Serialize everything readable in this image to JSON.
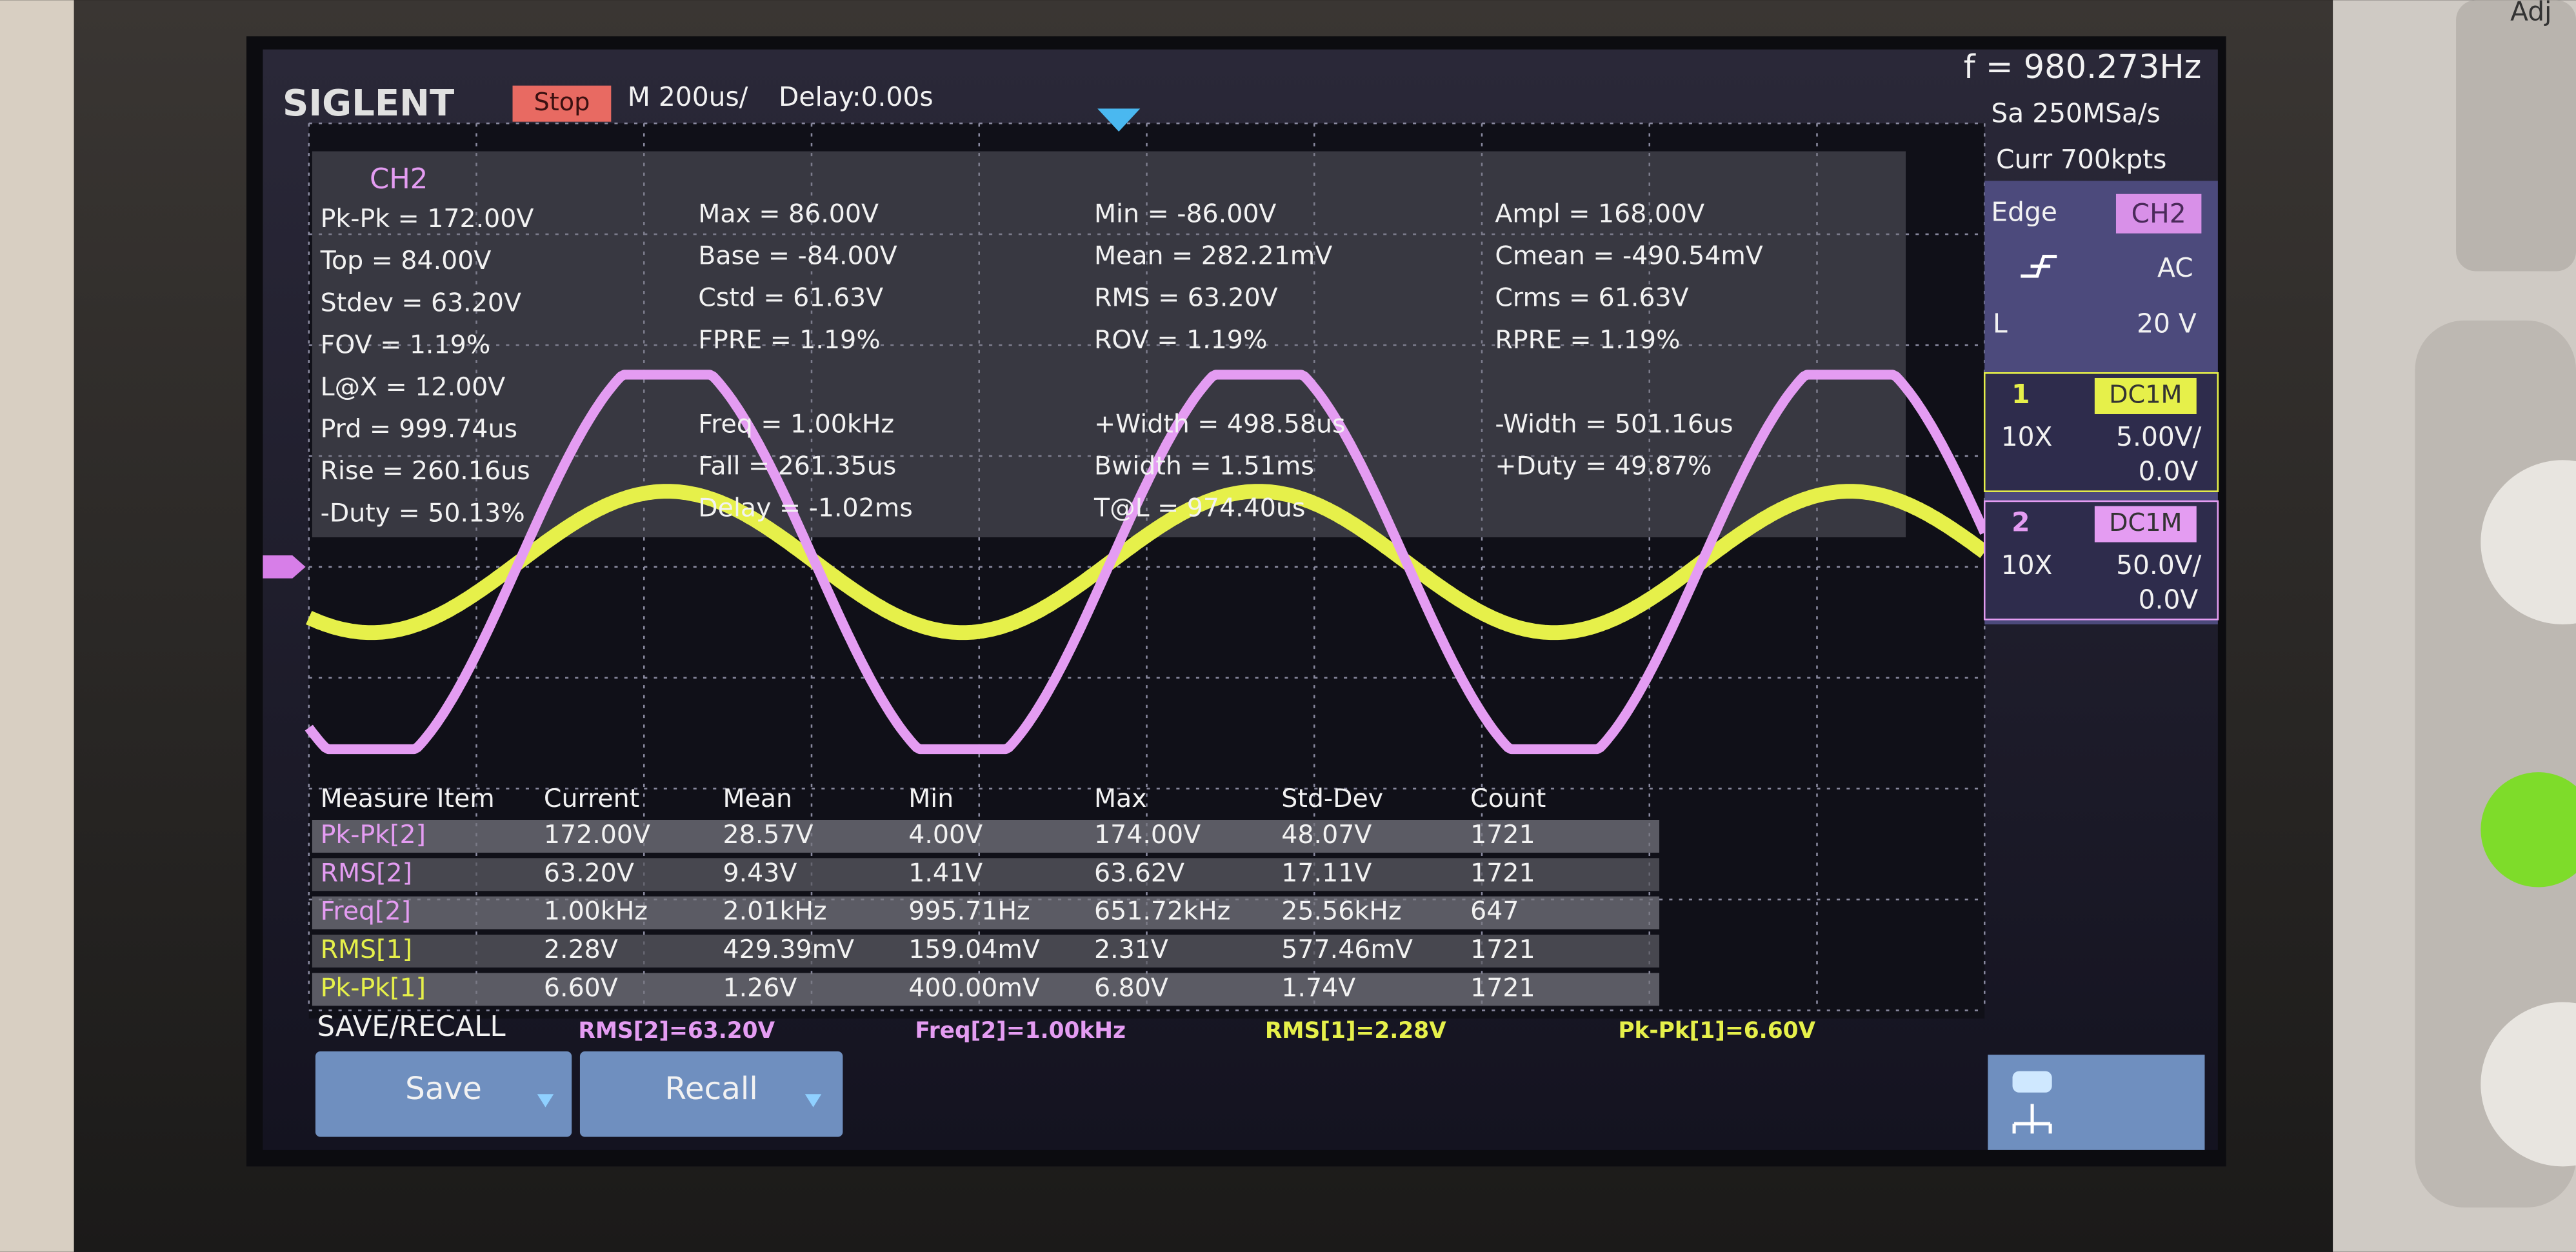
{
  "header": {
    "brand": "SIGLENT",
    "status": "Stop",
    "timebase": "M 200us/",
    "delay": "Delay:0.00s",
    "frequency": "f = 980.273Hz"
  },
  "acquisition": {
    "sample_rate": "Sa 250MSa/s",
    "memory": "Curr 700kpts"
  },
  "trigger": {
    "type": "Edge",
    "source": "CH2",
    "coupling": "AC",
    "level_label": "L",
    "level": "20 V"
  },
  "channels": [
    {
      "number": "1",
      "coupling": "DC1M",
      "probe": "10X",
      "scale": "5.00V/",
      "offset": "0.0V",
      "color": "#e6f04a"
    },
    {
      "number": "2",
      "coupling": "DC1M",
      "probe": "10X",
      "scale": "50.0V/",
      "offset": "0.0V",
      "color": "#e49cf2"
    }
  ],
  "measurements": {
    "channel": "CH2",
    "columns": [
      [
        "Pk-Pk = 172.00V",
        "Top = 84.00V",
        "Stdev = 63.20V",
        "FOV = 1.19%",
        "L@X = 12.00V",
        "Prd = 999.74us",
        "Rise = 260.16us",
        "-Duty = 50.13%"
      ],
      [
        "Max = 86.00V",
        "Base = -84.00V",
        "Cstd = 61.63V",
        "FPRE = 1.19%",
        null,
        "Freq = 1.00kHz",
        "Fall = 261.35us",
        "Delay = -1.02ms"
      ],
      [
        "Min = -86.00V",
        "Mean = 282.21mV",
        "RMS = 63.20V",
        "ROV = 1.19%",
        null,
        "+Width = 498.58us",
        "Bwidth = 1.51ms",
        "T@L = 974.40us"
      ],
      [
        "Ampl = 168.00V",
        "Cmean = -490.54mV",
        "Crms = 61.63V",
        "RPRE = 1.19%",
        null,
        "-Width = 501.16us",
        "+Duty = 49.87%"
      ]
    ]
  },
  "statistics": {
    "header": [
      "Measure Item",
      "Current",
      "Mean",
      "Min",
      "Max",
      "Std-Dev",
      "Count"
    ],
    "rows": [
      {
        "color": "#e49cf2",
        "cells": [
          "Pk-Pk[2]",
          "172.00V",
          "28.57V",
          "4.00V",
          "174.00V",
          "48.07V",
          "1721"
        ]
      },
      {
        "color": "#e49cf2",
        "cells": [
          "RMS[2]",
          "63.20V",
          "9.43V",
          "1.41V",
          "63.62V",
          "17.11V",
          "1721"
        ]
      },
      {
        "color": "#e49cf2",
        "cells": [
          "Freq[2]",
          "1.00kHz",
          "2.01kHz",
          "995.71Hz",
          "651.72kHz",
          "25.56kHz",
          "647"
        ]
      },
      {
        "color": "#e6f04a",
        "cells": [
          "RMS[1]",
          "2.28V",
          "429.39mV",
          "159.04mV",
          "2.31V",
          "577.46mV",
          "1721"
        ]
      },
      {
        "color": "#e6f04a",
        "cells": [
          "Pk-Pk[1]",
          "6.60V",
          "1.26V",
          "400.00mV",
          "6.80V",
          "1.74V",
          "1721"
        ]
      }
    ]
  },
  "footer": {
    "menu": "SAVE/RECALL",
    "readouts": [
      {
        "text": "RMS[2]=63.20V",
        "color": "#e49cf2"
      },
      {
        "text": "Freq[2]=1.00kHz",
        "color": "#e49cf2"
      },
      {
        "text": "RMS[1]=2.28V",
        "color": "#e6f04a"
      },
      {
        "text": "Pk-Pk[1]=6.60V",
        "color": "#e6f04a"
      }
    ],
    "buttons": [
      "Save",
      "Recall"
    ]
  },
  "bezel": {
    "label": "Adj"
  }
}
